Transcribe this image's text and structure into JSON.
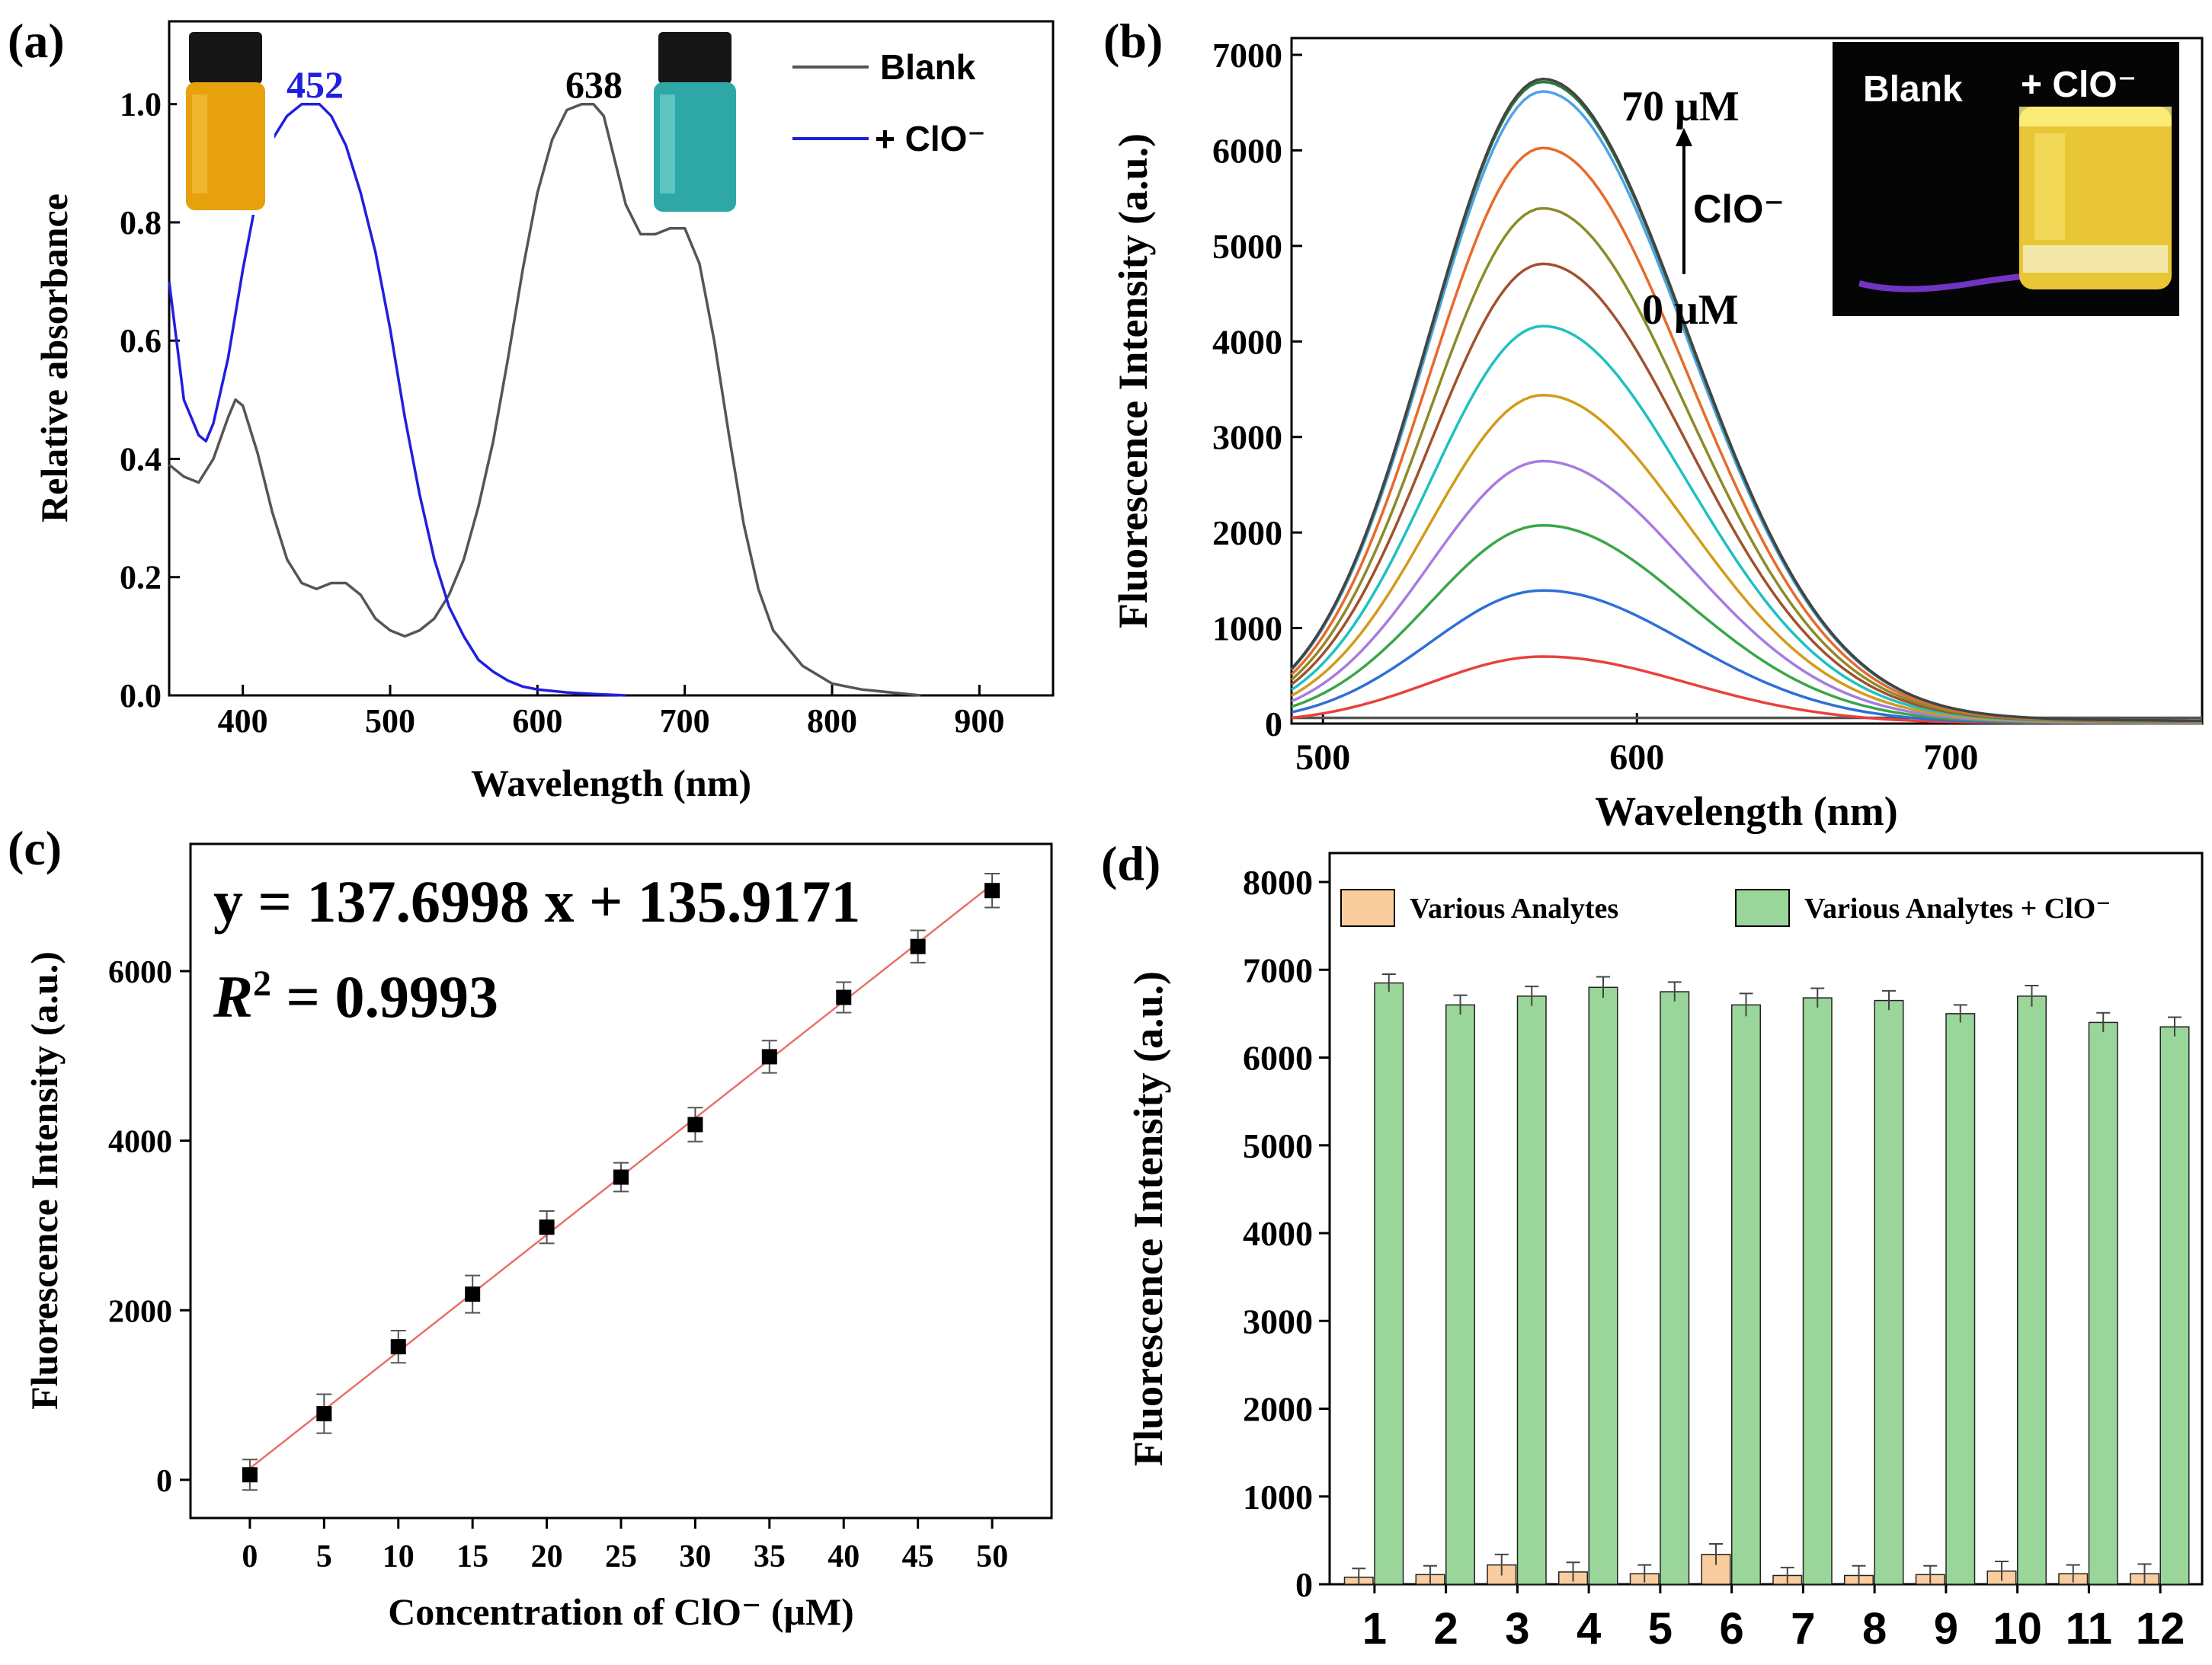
{
  "colors": {
    "blank": "#555555",
    "clo": "#1f1fe0",
    "fit_line": "#e8706a",
    "bar_analyte": "#f9cd9e",
    "bar_clo": "#9ad69a",
    "curves": [
      "#555555",
      "#e8413c",
      "#2f6fd6",
      "#3aa648",
      "#a77be0",
      "#d29b1a",
      "#1fc0c0",
      "#a0522d",
      "#8b8b2a",
      "#e86a2b",
      "#4ea3e8",
      "#2a7a3a",
      "#444444"
    ]
  },
  "chart_data": [
    {
      "panel": "(a)",
      "type": "line",
      "xlabel": "Wavelength (nm)",
      "ylabel": "Relative absorbance",
      "xlim": [
        350,
        950
      ],
      "ylim": [
        0,
        1.14
      ],
      "xticks": [
        "400",
        "500",
        "600",
        "700",
        "800",
        "900"
      ],
      "yticks": [
        "0.0",
        "0.2",
        "0.4",
        "0.6",
        "0.8",
        "1.0"
      ],
      "legend": [
        "Blank",
        "+ ClO⁻"
      ],
      "annotations": [
        "452",
        "638"
      ],
      "insets": [
        "yellow vial",
        "cyan vial"
      ],
      "series": [
        {
          "name": "Blank",
          "x": [
            350,
            360,
            370,
            380,
            390,
            395,
            400,
            410,
            420,
            430,
            440,
            450,
            460,
            470,
            480,
            490,
            500,
            510,
            520,
            530,
            540,
            550,
            560,
            570,
            580,
            590,
            600,
            610,
            620,
            630,
            638,
            645,
            650,
            660,
            670,
            680,
            690,
            700,
            710,
            720,
            730,
            740,
            750,
            760,
            780,
            800,
            820,
            840,
            860
          ],
          "y": [
            0.39,
            0.37,
            0.36,
            0.4,
            0.47,
            0.5,
            0.49,
            0.41,
            0.31,
            0.23,
            0.19,
            0.18,
            0.19,
            0.19,
            0.17,
            0.13,
            0.11,
            0.1,
            0.11,
            0.13,
            0.17,
            0.23,
            0.32,
            0.43,
            0.57,
            0.72,
            0.85,
            0.94,
            0.99,
            1.0,
            1.0,
            0.98,
            0.93,
            0.83,
            0.78,
            0.78,
            0.79,
            0.79,
            0.73,
            0.6,
            0.44,
            0.29,
            0.18,
            0.11,
            0.05,
            0.02,
            0.01,
            0.005,
            0.0
          ]
        },
        {
          "name": "+ ClO⁻",
          "x": [
            350,
            355,
            360,
            370,
            375,
            380,
            390,
            400,
            410,
            420,
            430,
            440,
            452,
            460,
            470,
            480,
            490,
            500,
            510,
            520,
            530,
            540,
            550,
            560,
            570,
            580,
            590,
            600,
            620,
            640,
            660
          ],
          "y": [
            0.7,
            0.6,
            0.5,
            0.44,
            0.43,
            0.46,
            0.57,
            0.72,
            0.85,
            0.94,
            0.98,
            1.0,
            1.0,
            0.98,
            0.93,
            0.85,
            0.75,
            0.62,
            0.47,
            0.34,
            0.23,
            0.15,
            0.1,
            0.06,
            0.04,
            0.025,
            0.015,
            0.01,
            0.005,
            0.002,
            0.0
          ]
        }
      ]
    },
    {
      "panel": "(b)",
      "type": "line",
      "xlabel": "Wavelength (nm)",
      "ylabel": "Fluorescence Intensity (a.u.)",
      "xlim": [
        490,
        780
      ],
      "ylim": [
        0,
        7000
      ],
      "xticks": [
        "500",
        "600",
        "700"
      ],
      "yticks": [
        "0",
        "1000",
        "2000",
        "3000",
        "4000",
        "5000",
        "6000",
        "7000"
      ],
      "annotations": [
        "70 μM",
        "ClO⁻",
        "0 μM"
      ],
      "inset_labels": [
        "Blank",
        "+ ClO⁻"
      ],
      "peak_nm": 570,
      "peak_values": [
        60,
        700,
        1390,
        2070,
        2740,
        3430,
        4150,
        4800,
        5380,
        6010,
        6600,
        6700,
        6730
      ]
    },
    {
      "panel": "(c)",
      "type": "scatter",
      "xlabel": "Concentration of ClO⁻ (μM)",
      "ylabel": "Fluorescence Intensity (a.u.)",
      "xlim": [
        -4,
        54
      ],
      "ylim": [
        -450,
        7500
      ],
      "xticks": [
        "0",
        "5",
        "10",
        "15",
        "20",
        "25",
        "30",
        "35",
        "40",
        "45",
        "50"
      ],
      "yticks": [
        "0",
        "2000",
        "4000",
        "6000"
      ],
      "equation": "y = 137.6998 x + 135.9171",
      "r2_label": "R",
      "r2_sup": "2",
      "r2_value": " = 0.9993",
      "x": [
        0,
        5,
        10,
        15,
        20,
        25,
        30,
        35,
        40,
        45,
        50
      ],
      "y": [
        60,
        780,
        1570,
        2190,
        2980,
        3570,
        4190,
        4990,
        5690,
        6290,
        6950
      ],
      "err": [
        180,
        230,
        190,
        220,
        190,
        170,
        200,
        190,
        180,
        190,
        200
      ],
      "fit": {
        "slope": 137.6998,
        "intercept": 135.9171
      }
    },
    {
      "panel": "(d)",
      "type": "bar",
      "xlabel": "",
      "ylabel": "Fluorescence Intensity (a.u.)",
      "ylim": [
        0,
        8000
      ],
      "yticks": [
        "0",
        "1000",
        "2000",
        "3000",
        "4000",
        "5000",
        "6000",
        "7000",
        "8000"
      ],
      "categories": [
        "1",
        "2",
        "3",
        "4",
        "5",
        "6",
        "7",
        "8",
        "9",
        "10",
        "11",
        "12"
      ],
      "series": [
        {
          "name": "Various Analytes",
          "values": [
            80,
            110,
            220,
            140,
            120,
            340,
            100,
            100,
            110,
            150,
            120,
            120
          ],
          "err": [
            100,
            100,
            120,
            110,
            100,
            120,
            90,
            110,
            100,
            110,
            100,
            110
          ]
        },
        {
          "name": "Various Analytes + ClO⁻",
          "values": [
            6850,
            6600,
            6700,
            6800,
            6750,
            6600,
            6680,
            6650,
            6500,
            6700,
            6400,
            6350
          ],
          "err": [
            100,
            110,
            110,
            120,
            110,
            130,
            110,
            110,
            100,
            120,
            110,
            110
          ]
        }
      ]
    }
  ]
}
